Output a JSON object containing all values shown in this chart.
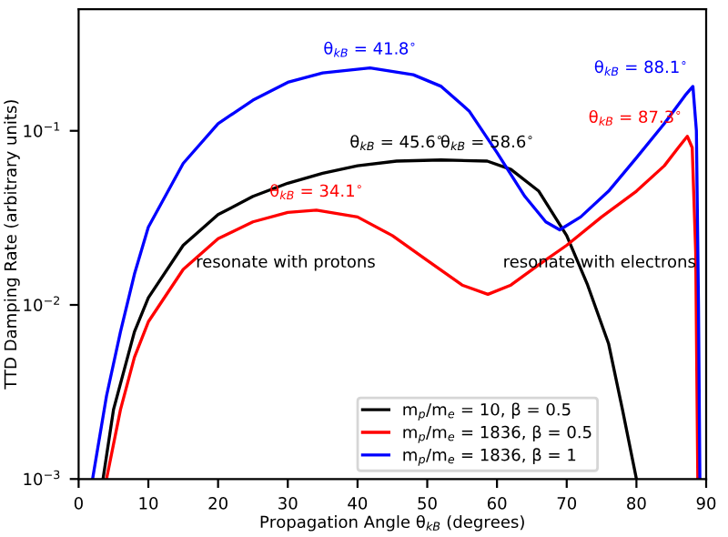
{
  "chart_data": {
    "type": "line",
    "xlabel": "Propagation Angle θ$_{kB}$ (degrees)",
    "ylabel": "TTD Damping Rate (arbitrary units)",
    "log": "y",
    "xlim": [
      0,
      90
    ],
    "xticks": [
      0,
      10,
      20,
      30,
      40,
      50,
      60,
      70,
      80,
      90
    ],
    "ylim": [
      0.001,
      0.5
    ],
    "yticks": [
      {
        "value": 0.001,
        "label": "10$^{−3}$"
      },
      {
        "value": 0.01,
        "label": "10$^{−2}$"
      },
      {
        "value": 0.1,
        "label": "10$^{−1}$"
      }
    ],
    "legend": "lower right",
    "grid": false,
    "marker": "none",
    "line_style": "solid",
    "series": [
      {
        "name": "m$_{p}$/m$_{e}$ = 10, β = 0.5",
        "color": "#000000",
        "x": [
          3.5,
          5,
          8,
          10,
          15,
          20,
          25,
          30,
          35,
          40,
          45.6,
          52,
          58.6,
          62,
          66,
          70,
          73,
          76,
          78,
          80
        ],
        "values": [
          0.001,
          0.0025,
          0.007,
          0.011,
          0.022,
          0.033,
          0.042,
          0.05,
          0.057,
          0.063,
          0.067,
          0.068,
          0.067,
          0.06,
          0.045,
          0.025,
          0.013,
          0.006,
          0.0025,
          0.001
        ]
      },
      {
        "name": "m$_{p}$/m$_{e}$ = 1836, β = 0.5",
        "color": "#ff0000",
        "x": [
          4,
          6,
          8,
          10,
          15,
          20,
          25,
          30,
          34.1,
          40,
          45,
          50,
          55,
          58.7,
          62,
          66,
          70,
          75,
          80,
          84,
          86,
          87.3,
          88,
          88.5,
          88.8
        ],
        "values": [
          0.001,
          0.0025,
          0.005,
          0.008,
          0.016,
          0.024,
          0.03,
          0.034,
          0.035,
          0.032,
          0.025,
          0.018,
          0.013,
          0.0115,
          0.013,
          0.017,
          0.022,
          0.032,
          0.045,
          0.063,
          0.08,
          0.093,
          0.08,
          0.02,
          0.001
        ]
      },
      {
        "name": "m$_{p}$/m$_{e}$ = 1836, β = 1",
        "color": "#0000ff",
        "x": [
          2,
          4,
          6,
          8,
          10,
          15,
          20,
          25,
          30,
          35,
          41.8,
          48,
          52,
          56,
          60,
          64,
          67,
          69,
          72,
          76,
          80,
          84,
          87,
          88.1,
          88.6,
          88.9,
          89.1
        ],
        "values": [
          0.001,
          0.003,
          0.007,
          0.015,
          0.028,
          0.065,
          0.11,
          0.15,
          0.19,
          0.215,
          0.23,
          0.21,
          0.18,
          0.13,
          0.075,
          0.042,
          0.03,
          0.027,
          0.032,
          0.045,
          0.07,
          0.11,
          0.16,
          0.18,
          0.1,
          0.01,
          0.001
        ]
      }
    ],
    "annotations": [
      {
        "text": "θ$_{kB}$ = 41.8$^{∘}$",
        "x": 41.8,
        "y": 0.23
      },
      {
        "text": "θ$_{kB}$ = 45.6$^{∘}$",
        "x": 45.6,
        "y": 0.067
      },
      {
        "text": "θ$_{kB}$ = 58.6$^{∘}$",
        "x": 58.6,
        "y": 0.067
      },
      {
        "text": "θ$_{kB}$ = 34.1$^{∘}$",
        "x": 34.1,
        "y": 0.035
      },
      {
        "text": "θ$_{kB}$ = 88.1$^{∘}$",
        "x": 88.1,
        "y": 0.18
      },
      {
        "text": "θ$_{kB}$ = 87.3$^{∘}$",
        "x": 87.3,
        "y": 0.093
      },
      "resonate with protons",
      "resonate with electrons"
    ]
  }
}
